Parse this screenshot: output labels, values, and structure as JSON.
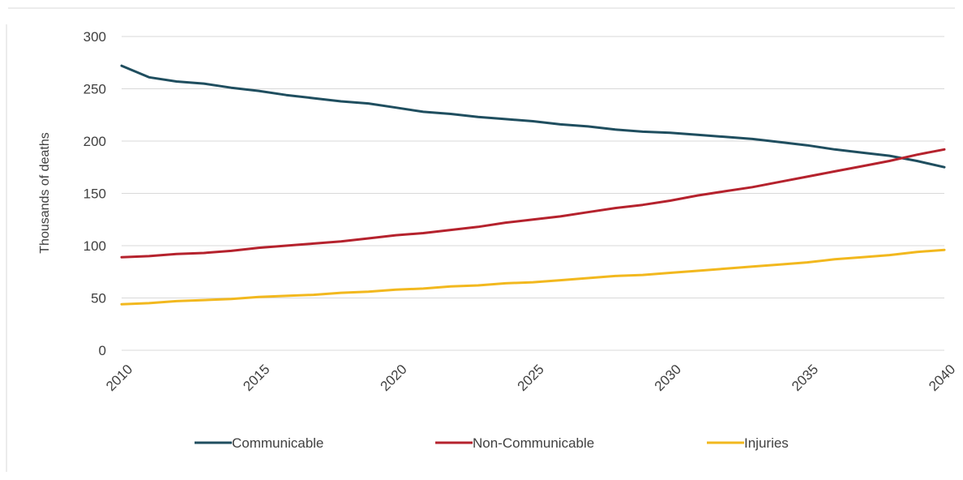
{
  "chart_data": {
    "type": "line",
    "title": "",
    "xlabel": "",
    "ylabel": "Thousands of deaths",
    "xlim": [
      2010,
      2040
    ],
    "ylim": [
      0,
      300
    ],
    "yticks": [
      0,
      50,
      100,
      150,
      200,
      250,
      300
    ],
    "xticks": [
      2010,
      2015,
      2020,
      2025,
      2030,
      2035,
      2040
    ],
    "grid": true,
    "legend_position": "bottom",
    "x": [
      2010,
      2011,
      2012,
      2013,
      2014,
      2015,
      2016,
      2017,
      2018,
      2019,
      2020,
      2021,
      2022,
      2023,
      2024,
      2025,
      2026,
      2027,
      2028,
      2029,
      2030,
      2031,
      2032,
      2033,
      2034,
      2035,
      2036,
      2037,
      2038,
      2039,
      2040
    ],
    "series": [
      {
        "name": "Communicable",
        "color": "#1f4e5f",
        "values": [
          272,
          261,
          257,
          255,
          251,
          248,
          244,
          241,
          238,
          236,
          232,
          228,
          226,
          223,
          221,
          219,
          216,
          214,
          211,
          209,
          208,
          206,
          204,
          202,
          199,
          196,
          192,
          189,
          186,
          181,
          175
        ]
      },
      {
        "name": "Non-Communicable",
        "color": "#b5222d",
        "values": [
          89,
          90,
          92,
          93,
          95,
          98,
          100,
          102,
          104,
          107,
          110,
          112,
          115,
          118,
          122,
          125,
          128,
          132,
          136,
          139,
          143,
          148,
          152,
          156,
          161,
          166,
          171,
          176,
          181,
          187,
          192
        ]
      },
      {
        "name": "Injuries",
        "color": "#f2b81e",
        "values": [
          44,
          45,
          47,
          48,
          49,
          51,
          52,
          53,
          55,
          56,
          58,
          59,
          61,
          62,
          64,
          65,
          67,
          69,
          71,
          72,
          74,
          76,
          78,
          80,
          82,
          84,
          87,
          89,
          91,
          94,
          96
        ]
      }
    ]
  }
}
